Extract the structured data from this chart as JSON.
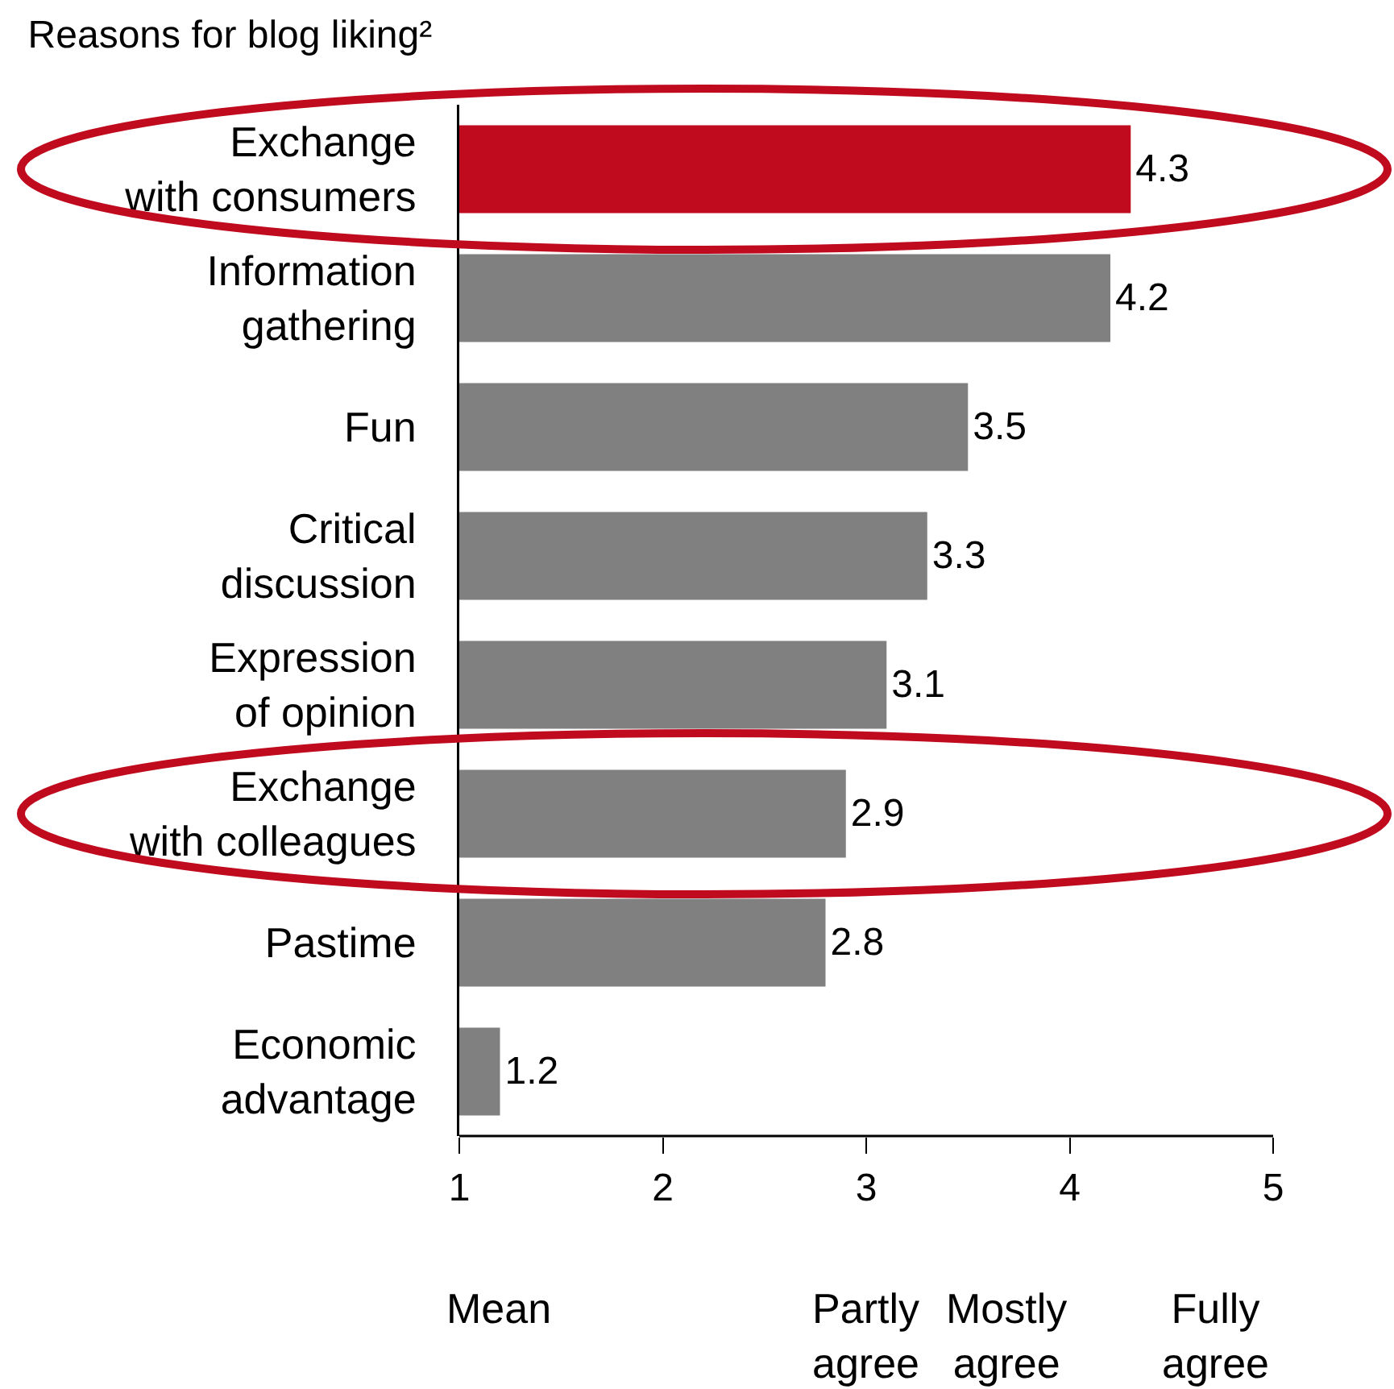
{
  "chart_data": {
    "type": "bar",
    "orientation": "horizontal",
    "title": "Reasons for blog liking²",
    "xlabel": "Mean",
    "categories": [
      "Exchange\nwith consumers",
      "Information\ngathering",
      "Fun",
      "Critical\ndiscussion",
      "Expression\nof opinion",
      "Exchange\nwith colleagues",
      "Pastime",
      "Economic\nadvantage"
    ],
    "values": [
      4.3,
      4.2,
      3.5,
      3.3,
      3.1,
      2.9,
      2.8,
      1.2
    ],
    "colors": [
      "#c00a1e",
      "#808080",
      "#808080",
      "#808080",
      "#808080",
      "#808080",
      "#808080",
      "#808080"
    ],
    "xlim": [
      1,
      5
    ],
    "xticks": [
      1,
      2,
      3,
      4,
      5
    ],
    "data_labels": true,
    "grid": false,
    "annotations": [
      "Partly\nagree",
      "Mostly\nagree",
      "Fully\nagree"
    ]
  }
}
